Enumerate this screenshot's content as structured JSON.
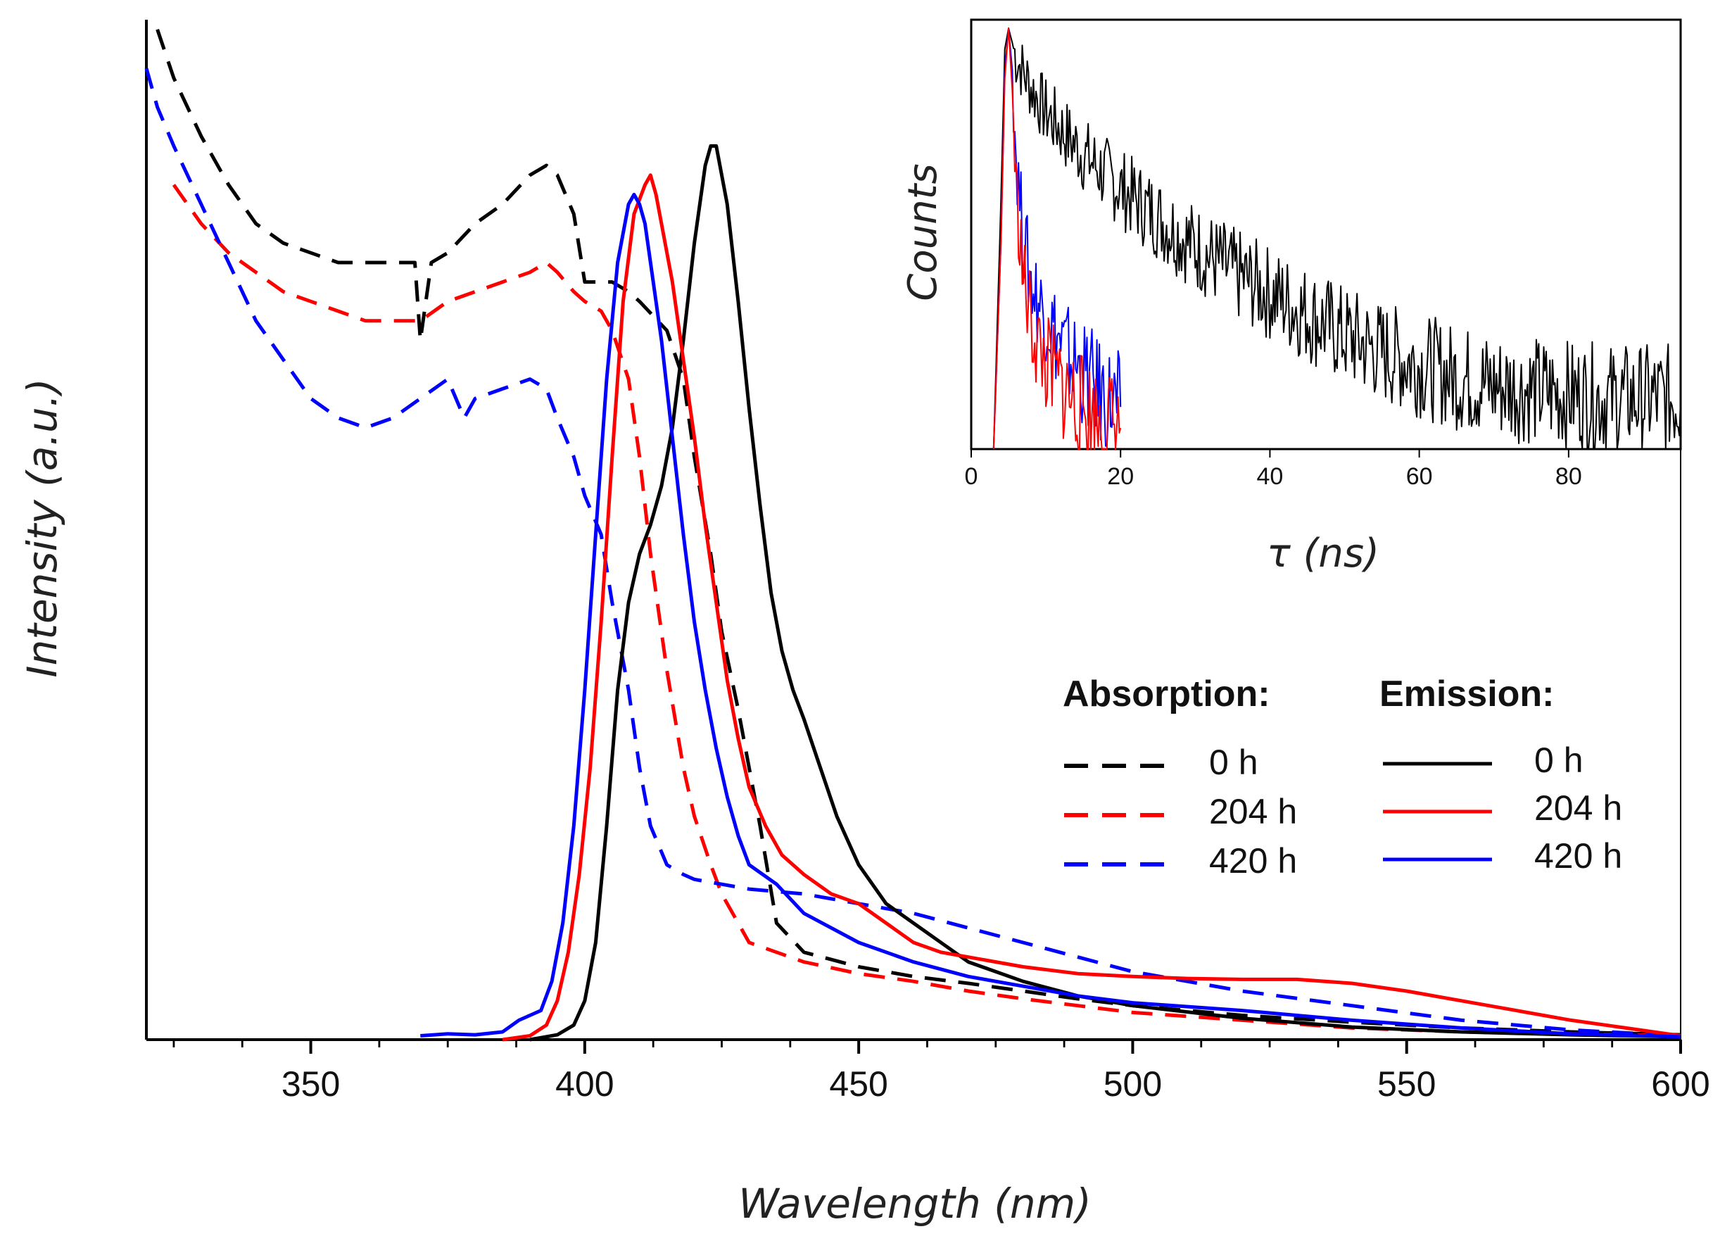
{
  "chart_data": [
    {
      "type": "line",
      "name": "main",
      "xlabel": "Wavelength (nm)",
      "ylabel": "Intensity (a.u.)",
      "xlim": [
        320,
        600
      ],
      "ylim": [
        0,
        1.05
      ],
      "x_ticks": [
        350,
        400,
        450,
        500,
        550,
        600
      ],
      "y_ticks_shown": false,
      "legend": {
        "placement": "center-right",
        "groups": [
          {
            "header": "Absorption:",
            "style": "dashed",
            "entries": [
              "0 h",
              "204 h",
              "420 h"
            ]
          },
          {
            "header": "Emission:",
            "style": "solid",
            "entries": [
              "0 h",
              "204 h",
              "420 h"
            ]
          }
        ]
      },
      "series": [
        {
          "name": "Absorption 0 h",
          "style": "dashed",
          "color": "#000000",
          "x": [
            322,
            325,
            330,
            335,
            340,
            345,
            350,
            355,
            360,
            365,
            369,
            370,
            372,
            375,
            380,
            385,
            390,
            393,
            395,
            398,
            400,
            405,
            408,
            410,
            415,
            418,
            420,
            423,
            425,
            428,
            430,
            432,
            435,
            440,
            450,
            460,
            470,
            480,
            490,
            500,
            520,
            540,
            560,
            580,
            600
          ],
          "y": [
            1.04,
            0.99,
            0.93,
            0.88,
            0.84,
            0.82,
            0.81,
            0.8,
            0.8,
            0.8,
            0.8,
            0.72,
            0.8,
            0.81,
            0.84,
            0.86,
            0.89,
            0.9,
            0.89,
            0.85,
            0.78,
            0.78,
            0.77,
            0.76,
            0.73,
            0.68,
            0.6,
            0.5,
            0.42,
            0.34,
            0.28,
            0.22,
            0.12,
            0.09,
            0.075,
            0.065,
            0.058,
            0.05,
            0.042,
            0.035,
            0.025,
            0.018,
            0.012,
            0.008,
            0.005
          ]
        },
        {
          "name": "Absorption 204 h",
          "style": "dashed",
          "color": "#ff0000",
          "x": [
            325,
            330,
            335,
            340,
            345,
            350,
            355,
            360,
            365,
            370,
            375,
            380,
            385,
            390,
            393,
            395,
            398,
            400,
            403,
            405,
            408,
            410,
            412,
            415,
            418,
            420,
            423,
            425,
            428,
            430,
            435,
            440,
            450,
            460,
            470,
            480,
            490,
            500,
            520,
            540,
            560,
            580,
            600
          ],
          "y": [
            0.88,
            0.84,
            0.81,
            0.79,
            0.77,
            0.76,
            0.75,
            0.74,
            0.74,
            0.74,
            0.76,
            0.77,
            0.78,
            0.79,
            0.8,
            0.79,
            0.77,
            0.76,
            0.75,
            0.73,
            0.68,
            0.6,
            0.5,
            0.38,
            0.28,
            0.23,
            0.18,
            0.15,
            0.12,
            0.1,
            0.09,
            0.08,
            0.068,
            0.06,
            0.05,
            0.042,
            0.035,
            0.028,
            0.02,
            0.012,
            0.008,
            0.006,
            0.004
          ]
        },
        {
          "name": "Absorption 420 h",
          "style": "dashed",
          "color": "#0000ff",
          "x": [
            320,
            322,
            325,
            330,
            335,
            340,
            345,
            350,
            355,
            360,
            365,
            370,
            375,
            378,
            380,
            385,
            390,
            393,
            395,
            398,
            400,
            403,
            405,
            408,
            410,
            412,
            415,
            418,
            420,
            425,
            430,
            440,
            450,
            460,
            470,
            480,
            490,
            500,
            520,
            540,
            560,
            580,
            600
          ],
          "y": [
            1.0,
            0.96,
            0.92,
            0.86,
            0.8,
            0.74,
            0.7,
            0.66,
            0.64,
            0.63,
            0.64,
            0.66,
            0.68,
            0.64,
            0.66,
            0.67,
            0.68,
            0.67,
            0.64,
            0.6,
            0.56,
            0.52,
            0.45,
            0.36,
            0.28,
            0.22,
            0.18,
            0.17,
            0.165,
            0.16,
            0.155,
            0.15,
            0.14,
            0.13,
            0.115,
            0.1,
            0.085,
            0.07,
            0.05,
            0.035,
            0.02,
            0.01,
            0.004
          ]
        },
        {
          "name": "Emission 0 h",
          "style": "solid",
          "color": "#000000",
          "x": [
            390,
            395,
            398,
            400,
            402,
            404,
            406,
            408,
            410,
            412,
            414,
            416,
            418,
            420,
            422,
            423,
            424,
            426,
            428,
            430,
            432,
            434,
            436,
            438,
            440,
            443,
            446,
            450,
            455,
            460,
            465,
            470,
            480,
            490,
            500,
            520,
            540,
            560,
            580,
            600
          ],
          "y": [
            0.0,
            0.005,
            0.015,
            0.04,
            0.1,
            0.22,
            0.36,
            0.45,
            0.5,
            0.53,
            0.57,
            0.63,
            0.72,
            0.82,
            0.9,
            0.92,
            0.92,
            0.86,
            0.76,
            0.65,
            0.55,
            0.46,
            0.4,
            0.36,
            0.33,
            0.28,
            0.23,
            0.18,
            0.14,
            0.12,
            0.1,
            0.08,
            0.06,
            0.045,
            0.035,
            0.022,
            0.013,
            0.008,
            0.005,
            0.003
          ]
        },
        {
          "name": "Emission 204 h",
          "style": "solid",
          "color": "#ff0000",
          "x": [
            385,
            390,
            393,
            395,
            397,
            399,
            401,
            403,
            405,
            407,
            409,
            411,
            412,
            413,
            414,
            416,
            418,
            420,
            422,
            424,
            426,
            428,
            430,
            433,
            436,
            440,
            445,
            450,
            455,
            460,
            465,
            470,
            480,
            490,
            500,
            510,
            520,
            530,
            540,
            550,
            560,
            570,
            580,
            590,
            600
          ],
          "y": [
            0.0,
            0.004,
            0.015,
            0.04,
            0.09,
            0.17,
            0.28,
            0.43,
            0.6,
            0.76,
            0.85,
            0.88,
            0.89,
            0.87,
            0.84,
            0.78,
            0.7,
            0.62,
            0.53,
            0.45,
            0.37,
            0.31,
            0.26,
            0.22,
            0.19,
            0.17,
            0.15,
            0.14,
            0.12,
            0.1,
            0.09,
            0.085,
            0.075,
            0.068,
            0.065,
            0.063,
            0.062,
            0.062,
            0.058,
            0.05,
            0.04,
            0.03,
            0.02,
            0.012,
            0.004
          ]
        },
        {
          "name": "Emission 420 h",
          "style": "solid",
          "color": "#0000ff",
          "x": [
            370,
            375,
            380,
            385,
            388,
            390,
            392,
            394,
            396,
            398,
            400,
            402,
            404,
            406,
            408,
            409,
            410,
            411,
            412,
            414,
            416,
            418,
            420,
            422,
            424,
            426,
            428,
            430,
            435,
            440,
            450,
            460,
            470,
            480,
            490,
            500,
            520,
            540,
            560,
            580,
            600
          ],
          "y": [
            0.004,
            0.006,
            0.005,
            0.008,
            0.02,
            0.025,
            0.03,
            0.06,
            0.12,
            0.22,
            0.36,
            0.52,
            0.68,
            0.8,
            0.86,
            0.87,
            0.86,
            0.84,
            0.8,
            0.72,
            0.62,
            0.52,
            0.43,
            0.36,
            0.3,
            0.25,
            0.21,
            0.18,
            0.16,
            0.13,
            0.1,
            0.08,
            0.065,
            0.055,
            0.045,
            0.038,
            0.03,
            0.02,
            0.012,
            0.006,
            0.003
          ]
        }
      ]
    },
    {
      "type": "line",
      "name": "inset",
      "xlabel": "τ (ns)",
      "ylabel": "Counts",
      "xlim": [
        0,
        95
      ],
      "ylim": [
        0,
        1.0
      ],
      "x_ticks": [
        0,
        20,
        40,
        60,
        80
      ],
      "y_ticks_shown": false,
      "legend": null,
      "series": [
        {
          "name": "0 h decay",
          "color": "#000000",
          "noisy": true,
          "x": [
            3,
            4,
            4.5,
            5,
            6,
            8,
            10,
            15,
            20,
            25,
            30,
            35,
            40,
            45,
            50,
            55,
            60,
            65,
            70,
            75,
            80,
            85,
            90,
            95
          ],
          "y": [
            0.0,
            0.6,
            0.95,
            1.0,
            0.93,
            0.86,
            0.8,
            0.7,
            0.62,
            0.55,
            0.48,
            0.42,
            0.37,
            0.32,
            0.27,
            0.23,
            0.2,
            0.17,
            0.15,
            0.14,
            0.13,
            0.12,
            0.12,
            0.12
          ]
        },
        {
          "name": "420 h decay",
          "color": "#0000ff",
          "noisy": true,
          "x": [
            3,
            4,
            4.5,
            5,
            5.5,
            6,
            7,
            8,
            9,
            10,
            12,
            14,
            16,
            18,
            20
          ],
          "y": [
            0.0,
            0.5,
            0.9,
            1.0,
            0.9,
            0.7,
            0.5,
            0.4,
            0.35,
            0.32,
            0.25,
            0.2,
            0.16,
            0.12,
            0.1
          ]
        },
        {
          "name": "204 h decay",
          "color": "#ff0000",
          "noisy": true,
          "x": [
            3,
            4,
            4.5,
            5,
            5.5,
            6,
            7,
            8,
            9,
            10,
            12,
            14,
            16,
            18,
            20
          ],
          "y": [
            0.0,
            0.5,
            0.88,
            1.0,
            0.85,
            0.62,
            0.4,
            0.3,
            0.24,
            0.2,
            0.15,
            0.11,
            0.08,
            0.06,
            0.05
          ]
        }
      ]
    }
  ]
}
